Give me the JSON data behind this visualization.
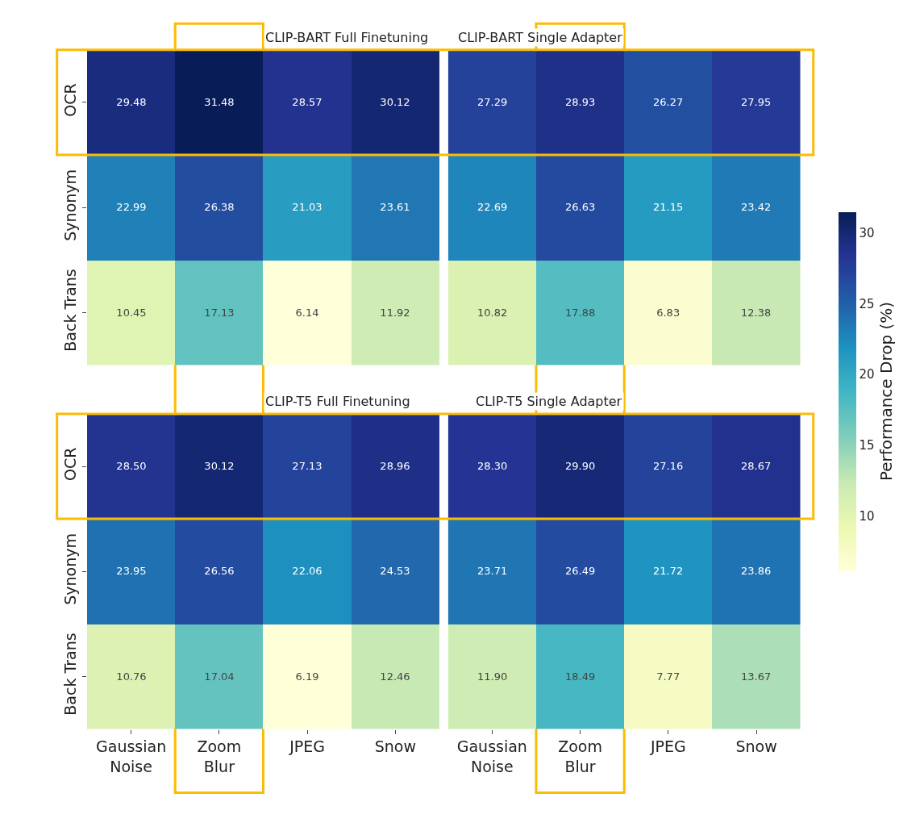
{
  "chart_data": [
    {
      "type": "heatmap",
      "title": "CLIP-BART Full Finetuning",
      "categories": [
        "Gaussian Noise",
        "Zoom Blur",
        "JPEG",
        "Snow"
      ],
      "y_categories": [
        "OCR",
        "Synonym",
        "Back Trans"
      ],
      "cells": [
        [
          29.48,
          31.48,
          28.57,
          30.12
        ],
        [
          22.99,
          26.38,
          21.03,
          23.61
        ],
        [
          10.45,
          17.13,
          6.14,
          11.92
        ]
      ],
      "cell_labels": [
        [
          "29.48",
          "31.48",
          "28.57",
          "30.12"
        ],
        [
          "22.99",
          "26.38",
          "21.03",
          "23.61"
        ],
        [
          "10.45",
          "17.13",
          "6.14",
          "11.92"
        ]
      ],
      "tick_labels": "y"
    },
    {
      "type": "heatmap",
      "title": "CLIP-BART Single Adapter",
      "categories": [
        "Gaussian Noise",
        "Zoom Blur",
        "JPEG",
        "Snow"
      ],
      "y_categories": [
        "OCR",
        "Synonym",
        "Back Trans"
      ],
      "cells": [
        [
          27.29,
          28.93,
          26.27,
          27.95
        ],
        [
          22.69,
          26.63,
          21.15,
          23.42
        ],
        [
          10.82,
          17.88,
          6.83,
          12.38
        ]
      ],
      "cell_labels": [
        [
          "27.29",
          "28.93",
          "26.27",
          "27.95"
        ],
        [
          "22.69",
          "26.63",
          "21.15",
          "23.42"
        ],
        [
          "10.82",
          "17.88",
          "6.83",
          "12.38"
        ]
      ],
      "clim": [
        6.14,
        31.48
      ],
      "cticks": [
        10,
        15,
        20,
        25,
        30
      ],
      "clabel": "Performance Drop (%)",
      "tick_labels": false
    },
    {
      "type": "heatmap",
      "title": "CLIP-T5 Full Finetuning",
      "categories": [
        "Gaussian Noise",
        "Zoom Blur",
        "JPEG",
        "Snow"
      ],
      "y_categories": [
        "OCR",
        "Synonym",
        "Back Trans"
      ],
      "cells": [
        [
          28.5,
          30.12,
          27.13,
          28.96
        ],
        [
          23.95,
          26.56,
          22.06,
          24.53
        ],
        [
          10.76,
          17.04,
          6.19,
          12.46
        ]
      ],
      "cell_labels": [
        [
          "28.50",
          "30.12",
          "27.13",
          "28.96"
        ],
        [
          "23.95",
          "26.56",
          "22.06",
          "24.53"
        ],
        [
          "10.76",
          "17.04",
          "6.19",
          "12.46"
        ]
      ]
    },
    {
      "type": "heatmap",
      "title": "CLIP-T5 Single Adapter",
      "categories": [
        "Gaussian Noise",
        "Zoom Blur",
        "JPEG",
        "Snow"
      ],
      "y_categories": [
        "OCR",
        "Synonym",
        "Back Trans"
      ],
      "cells": [
        [
          28.3,
          29.9,
          27.16,
          28.67
        ],
        [
          23.71,
          26.49,
          21.72,
          23.86
        ],
        [
          11.9,
          18.49,
          7.77,
          13.67
        ]
      ],
      "cell_labels": [
        [
          "28.30",
          "29.90",
          "27.16",
          "28.67"
        ],
        [
          "23.71",
          "26.49",
          "21.72",
          "23.86"
        ],
        [
          "11.90",
          "18.49",
          "7.77",
          "13.67"
        ]
      ],
      "tick_labels": "x"
    }
  ]
}
